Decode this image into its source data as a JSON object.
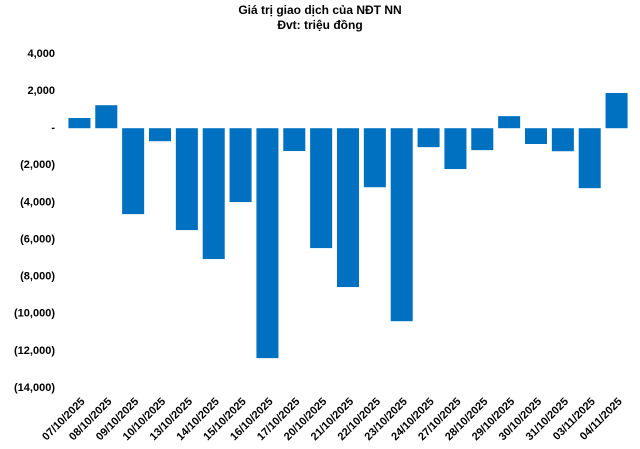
{
  "chart_data": {
    "type": "bar",
    "title": "Giá trị giao dịch của NĐT NN",
    "subtitle": "Đvt: triệu đồng",
    "categories": [
      "07/10/2025",
      "08/10/2025",
      "09/10/2025",
      "10/10/2025",
      "13/10/2025",
      "14/10/2025",
      "15/10/2025",
      "16/10/2025",
      "17/10/2025",
      "20/10/2025",
      "21/10/2025",
      "22/10/2025",
      "23/10/2025",
      "24/10/2025",
      "27/10/2025",
      "28/10/2025",
      "29/10/2025",
      "30/10/2025",
      "31/10/2025",
      "03/11/2025",
      "04/11/2025"
    ],
    "values": [
      550,
      1240,
      -4630,
      -700,
      -5490,
      -7050,
      -3980,
      -12390,
      -1230,
      -6460,
      -8560,
      -3180,
      -10400,
      -1020,
      -2200,
      -1180,
      650,
      -850,
      -1240,
      -3230,
      1900
    ],
    "color": "#0070c0",
    "ylim": [
      -14000,
      4000
    ],
    "yticks": [
      {
        "value": -14000,
        "label": "(14,000)"
      },
      {
        "value": -12000,
        "label": "(12,000)"
      },
      {
        "value": -10000,
        "label": "(10,000)"
      },
      {
        "value": -8000,
        "label": "(8,000)"
      },
      {
        "value": -6000,
        "label": "(6,000)"
      },
      {
        "value": -4000,
        "label": "(4,000)"
      },
      {
        "value": -2000,
        "label": "(2,000)"
      },
      {
        "value": 0,
        "label": "-"
      },
      {
        "value": 2000,
        "label": "2,000"
      },
      {
        "value": 4000,
        "label": "4,000"
      }
    ],
    "grid": false
  }
}
